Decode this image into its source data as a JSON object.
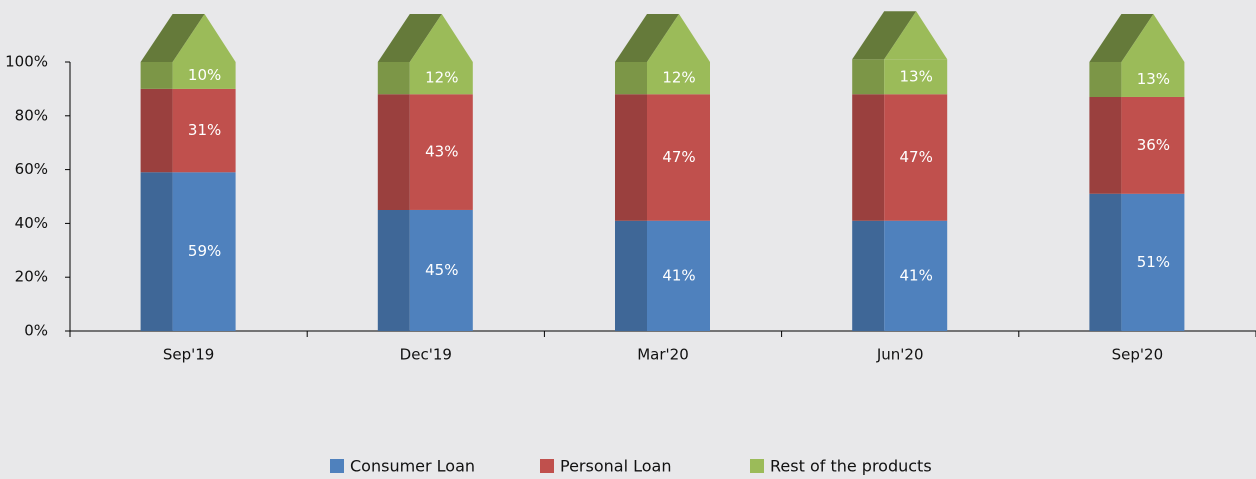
{
  "chart_data": {
    "type": "stacked_bar",
    "categories": [
      "Sep'19",
      "Dec'19",
      "Mar'20",
      "Jun'20",
      "Sep'20"
    ],
    "series": [
      {
        "name": "Consumer Loan",
        "color": "#4f81bd",
        "values": [
          59,
          45,
          41,
          41,
          51
        ],
        "value_labels": [
          "59%",
          "45%",
          "41%",
          "41%",
          "51%"
        ]
      },
      {
        "name": "Personal Loan",
        "color": "#c0504d",
        "values": [
          31,
          43,
          47,
          47,
          36
        ],
        "value_labels": [
          "31%",
          "43%",
          "47%",
          "47%",
          "36%"
        ]
      },
      {
        "name": "Rest of the products",
        "color": "#9bbb59",
        "values": [
          10,
          12,
          12,
          13,
          13
        ],
        "value_labels": [
          "10%",
          "12%",
          "12%",
          "13%",
          "13%"
        ]
      }
    ],
    "ylim": [
      0,
      100
    ],
    "yticks": [
      {
        "value": 0,
        "label": "0%"
      },
      {
        "value": 20,
        "label": "20%"
      },
      {
        "value": 40,
        "label": "40%"
      },
      {
        "value": 60,
        "label": "60%"
      },
      {
        "value": 80,
        "label": "80%"
      },
      {
        "value": 100,
        "label": "100%"
      }
    ],
    "legend": "bottom"
  }
}
